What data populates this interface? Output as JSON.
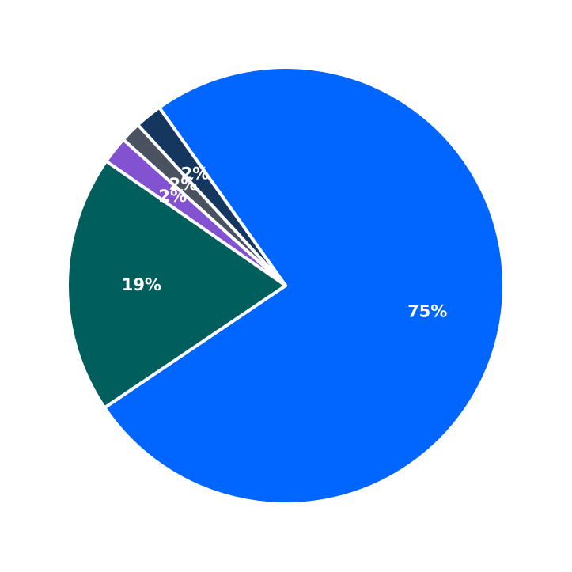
{
  "chart_data": {
    "type": "pie",
    "title": "",
    "slices": [
      {
        "value": 75,
        "label": "75%",
        "color": "#0066FF"
      },
      {
        "value": 2,
        "label": "2%",
        "color": "#14365F"
      },
      {
        "value": 1.5,
        "label": "2%",
        "color": "#4A5260"
      },
      {
        "value": 2,
        "label": "2%",
        "color": "#8352D0"
      },
      {
        "value": 19,
        "label": "19%",
        "color": "#005F5C"
      }
    ],
    "start_angle_deg": 214,
    "direction": "counterclockwise",
    "legend": "none"
  }
}
